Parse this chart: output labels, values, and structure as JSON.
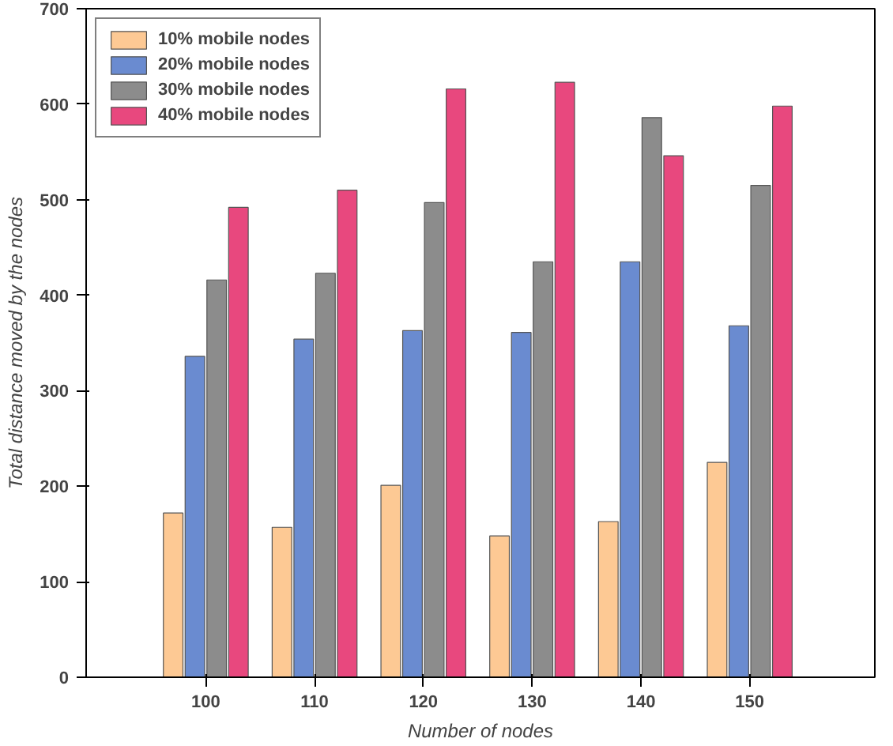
{
  "chart_data": {
    "type": "bar",
    "xlabel": "Number of nodes",
    "ylabel": "Total distance moved by the nodes",
    "categories": [
      "100",
      "110",
      "120",
      "130",
      "140",
      "150"
    ],
    "series": [
      {
        "name": "10% mobile nodes",
        "color": "#fdc994",
        "values": [
          172,
          157,
          201,
          148,
          163,
          225
        ]
      },
      {
        "name": "20% mobile nodes",
        "color": "#6a8bd0",
        "values": [
          336,
          354,
          363,
          361,
          435,
          368
        ]
      },
      {
        "name": "30% mobile nodes",
        "color": "#8c8c8c",
        "values": [
          416,
          423,
          497,
          435,
          586,
          515
        ]
      },
      {
        "name": "40% mobile nodes",
        "color": "#e8487e",
        "values": [
          492,
          510,
          616,
          623,
          546,
          598
        ]
      }
    ],
    "ylim": [
      0,
      700
    ],
    "yticks": [
      0,
      100,
      200,
      300,
      400,
      500,
      600,
      700
    ],
    "grid": false,
    "legend": "top left"
  }
}
